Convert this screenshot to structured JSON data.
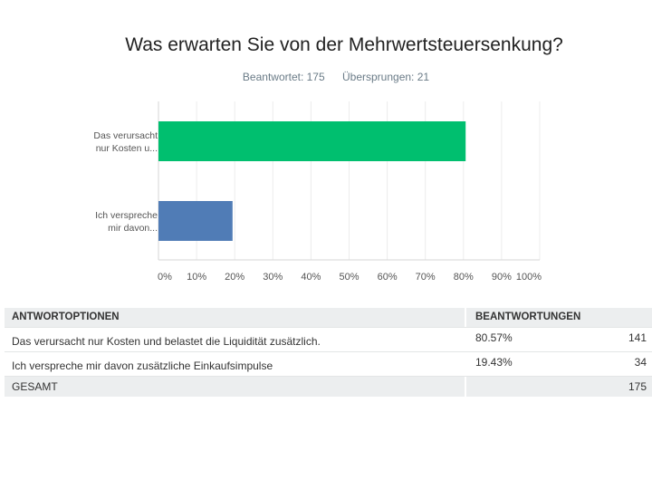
{
  "title": "Was erwarten Sie von der Mehrwertsteuersenkung?",
  "summary": {
    "answered": "Beantwortet: 175",
    "skipped": "Übersprungen: 21"
  },
  "chart_data": {
    "type": "bar",
    "orientation": "horizontal",
    "title": "Was erwarten Sie von der Mehrwertsteuersenkung?",
    "categories": [
      [
        "Das verursacht",
        "nur Kosten u..."
      ],
      [
        "Ich verspreche",
        "mir davon..."
      ]
    ],
    "values": [
      80.57,
      19.43
    ],
    "colors": [
      "#00bf6f",
      "#507cb6"
    ],
    "xlim": [
      0,
      100
    ],
    "xticks": [
      "0%",
      "10%",
      "20%",
      "30%",
      "40%",
      "50%",
      "60%",
      "70%",
      "80%",
      "90%",
      "100%"
    ],
    "grid": true
  },
  "table": {
    "headers": [
      "ANTWORTOPTIONEN",
      "BEANTWORTUNGEN"
    ],
    "rows": [
      {
        "label": "Das verursacht nur Kosten und belastet die Liquidität zusätzlich.",
        "pct": "80.57%",
        "count": "141"
      },
      {
        "label": "Ich verspreche mir davon zusätzliche Einkaufsimpulse",
        "pct": "19.43%",
        "count": "34"
      }
    ],
    "total": {
      "label": "GESAMT",
      "count": "175"
    }
  }
}
